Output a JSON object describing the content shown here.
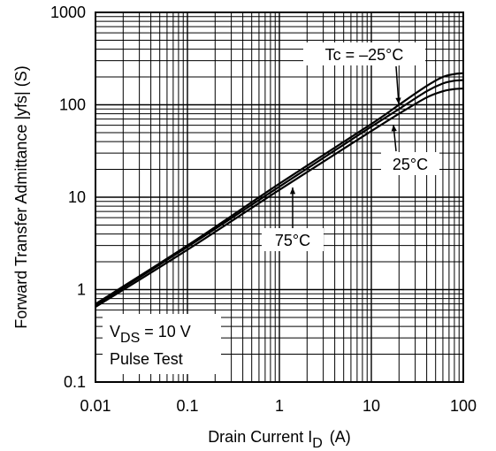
{
  "chart_data": {
    "type": "line",
    "xscale": "log",
    "yscale": "log",
    "xlim": [
      0.01,
      100
    ],
    "ylim": [
      0.1,
      1000
    ],
    "grid": true,
    "xlabel": "Drain Current I",
    "xlabel_sub": "D",
    "xlabel_unit": "(A)",
    "ylabel": "Forward Transfer Admittance |yfs| (S)",
    "x_ticks": [
      {
        "value": 0.01,
        "label": "0.01"
      },
      {
        "value": 0.1,
        "label": "0.1"
      },
      {
        "value": 1,
        "label": "1"
      },
      {
        "value": 10,
        "label": "10"
      },
      {
        "value": 100,
        "label": "100"
      }
    ],
    "y_ticks": [
      {
        "value": 0.1,
        "label": "0.1"
      },
      {
        "value": 1,
        "label": "1"
      },
      {
        "value": 10,
        "label": "10"
      },
      {
        "value": 100,
        "label": "100"
      },
      {
        "value": 1000,
        "label": "1000"
      }
    ],
    "series": [
      {
        "name": "Tc = –25°C",
        "x": [
          0.01,
          0.1,
          1,
          10,
          20,
          40,
          60,
          80,
          100
        ],
        "y": [
          0.7,
          3.0,
          14.0,
          62.0,
          100.0,
          160.0,
          200.0,
          215.0,
          220.0
        ]
      },
      {
        "name": "25°C",
        "x": [
          0.01,
          0.1,
          1,
          10,
          20,
          40,
          60,
          80,
          100
        ],
        "y": [
          0.68,
          2.9,
          13.0,
          58.0,
          90.0,
          140.0,
          170.0,
          182.0,
          185.0
        ]
      },
      {
        "name": "75°C",
        "x": [
          0.01,
          0.1,
          1,
          10,
          20,
          40,
          60,
          80,
          100
        ],
        "y": [
          0.65,
          2.7,
          12.0,
          52.0,
          80.0,
          120.0,
          140.0,
          148.0,
          150.0
        ]
      }
    ],
    "annotations": {
      "tc25_neg": "Tc = –25°C",
      "tc25": "25°C",
      "tc75": "75°C",
      "vds_main": "V",
      "vds_sub": "DS",
      "vds_rest": " = 10 V",
      "pulse": "Pulse Test"
    }
  }
}
